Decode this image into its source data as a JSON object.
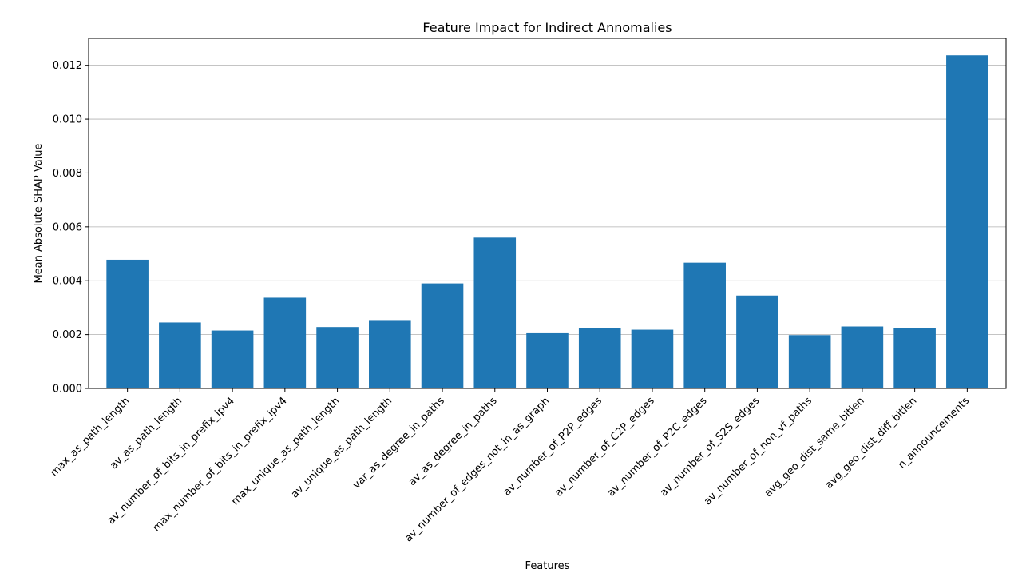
{
  "chart_data": {
    "type": "bar",
    "title": "Feature Impact for Indirect Annomalies",
    "xlabel": "Features",
    "ylabel": "Mean Absolute SHAP Value",
    "categories": [
      "max_as_path_length",
      "av_as_path_length",
      "av_number_of_bits_in_prefix_ipv4",
      "max_number_of_bits_in_prefix_ipv4",
      "max_unique_as_path_length",
      "av_unique_as_path_length",
      "var_as_degree_in_paths",
      "av_as_degree_in_paths",
      "av_number_of_edges_not_in_as_graph",
      "av_number_of_P2P_edges",
      "av_number_of_C2P_edges",
      "av_number_of_P2C_edges",
      "av_number_of_S2S_edges",
      "av_number_of_non_vf_paths",
      "avg_geo_dist_same_bitlen",
      "avg_geo_dist_diff_bitlen",
      "n_announcements"
    ],
    "values": [
      0.00478,
      0.00245,
      0.00215,
      0.00337,
      0.00228,
      0.00251,
      0.0039,
      0.0056,
      0.00205,
      0.00224,
      0.00218,
      0.00467,
      0.00345,
      0.00198,
      0.0023,
      0.00224,
      0.01237
    ],
    "ylim": [
      0,
      0.013
    ],
    "yticks": [
      0.0,
      0.002,
      0.004,
      0.006,
      0.008,
      0.01,
      0.012
    ],
    "ytick_labels": [
      "0.000",
      "0.002",
      "0.004",
      "0.006",
      "0.008",
      "0.010",
      "0.012"
    ],
    "grid": "y",
    "bar_color": "#1f77b4"
  }
}
